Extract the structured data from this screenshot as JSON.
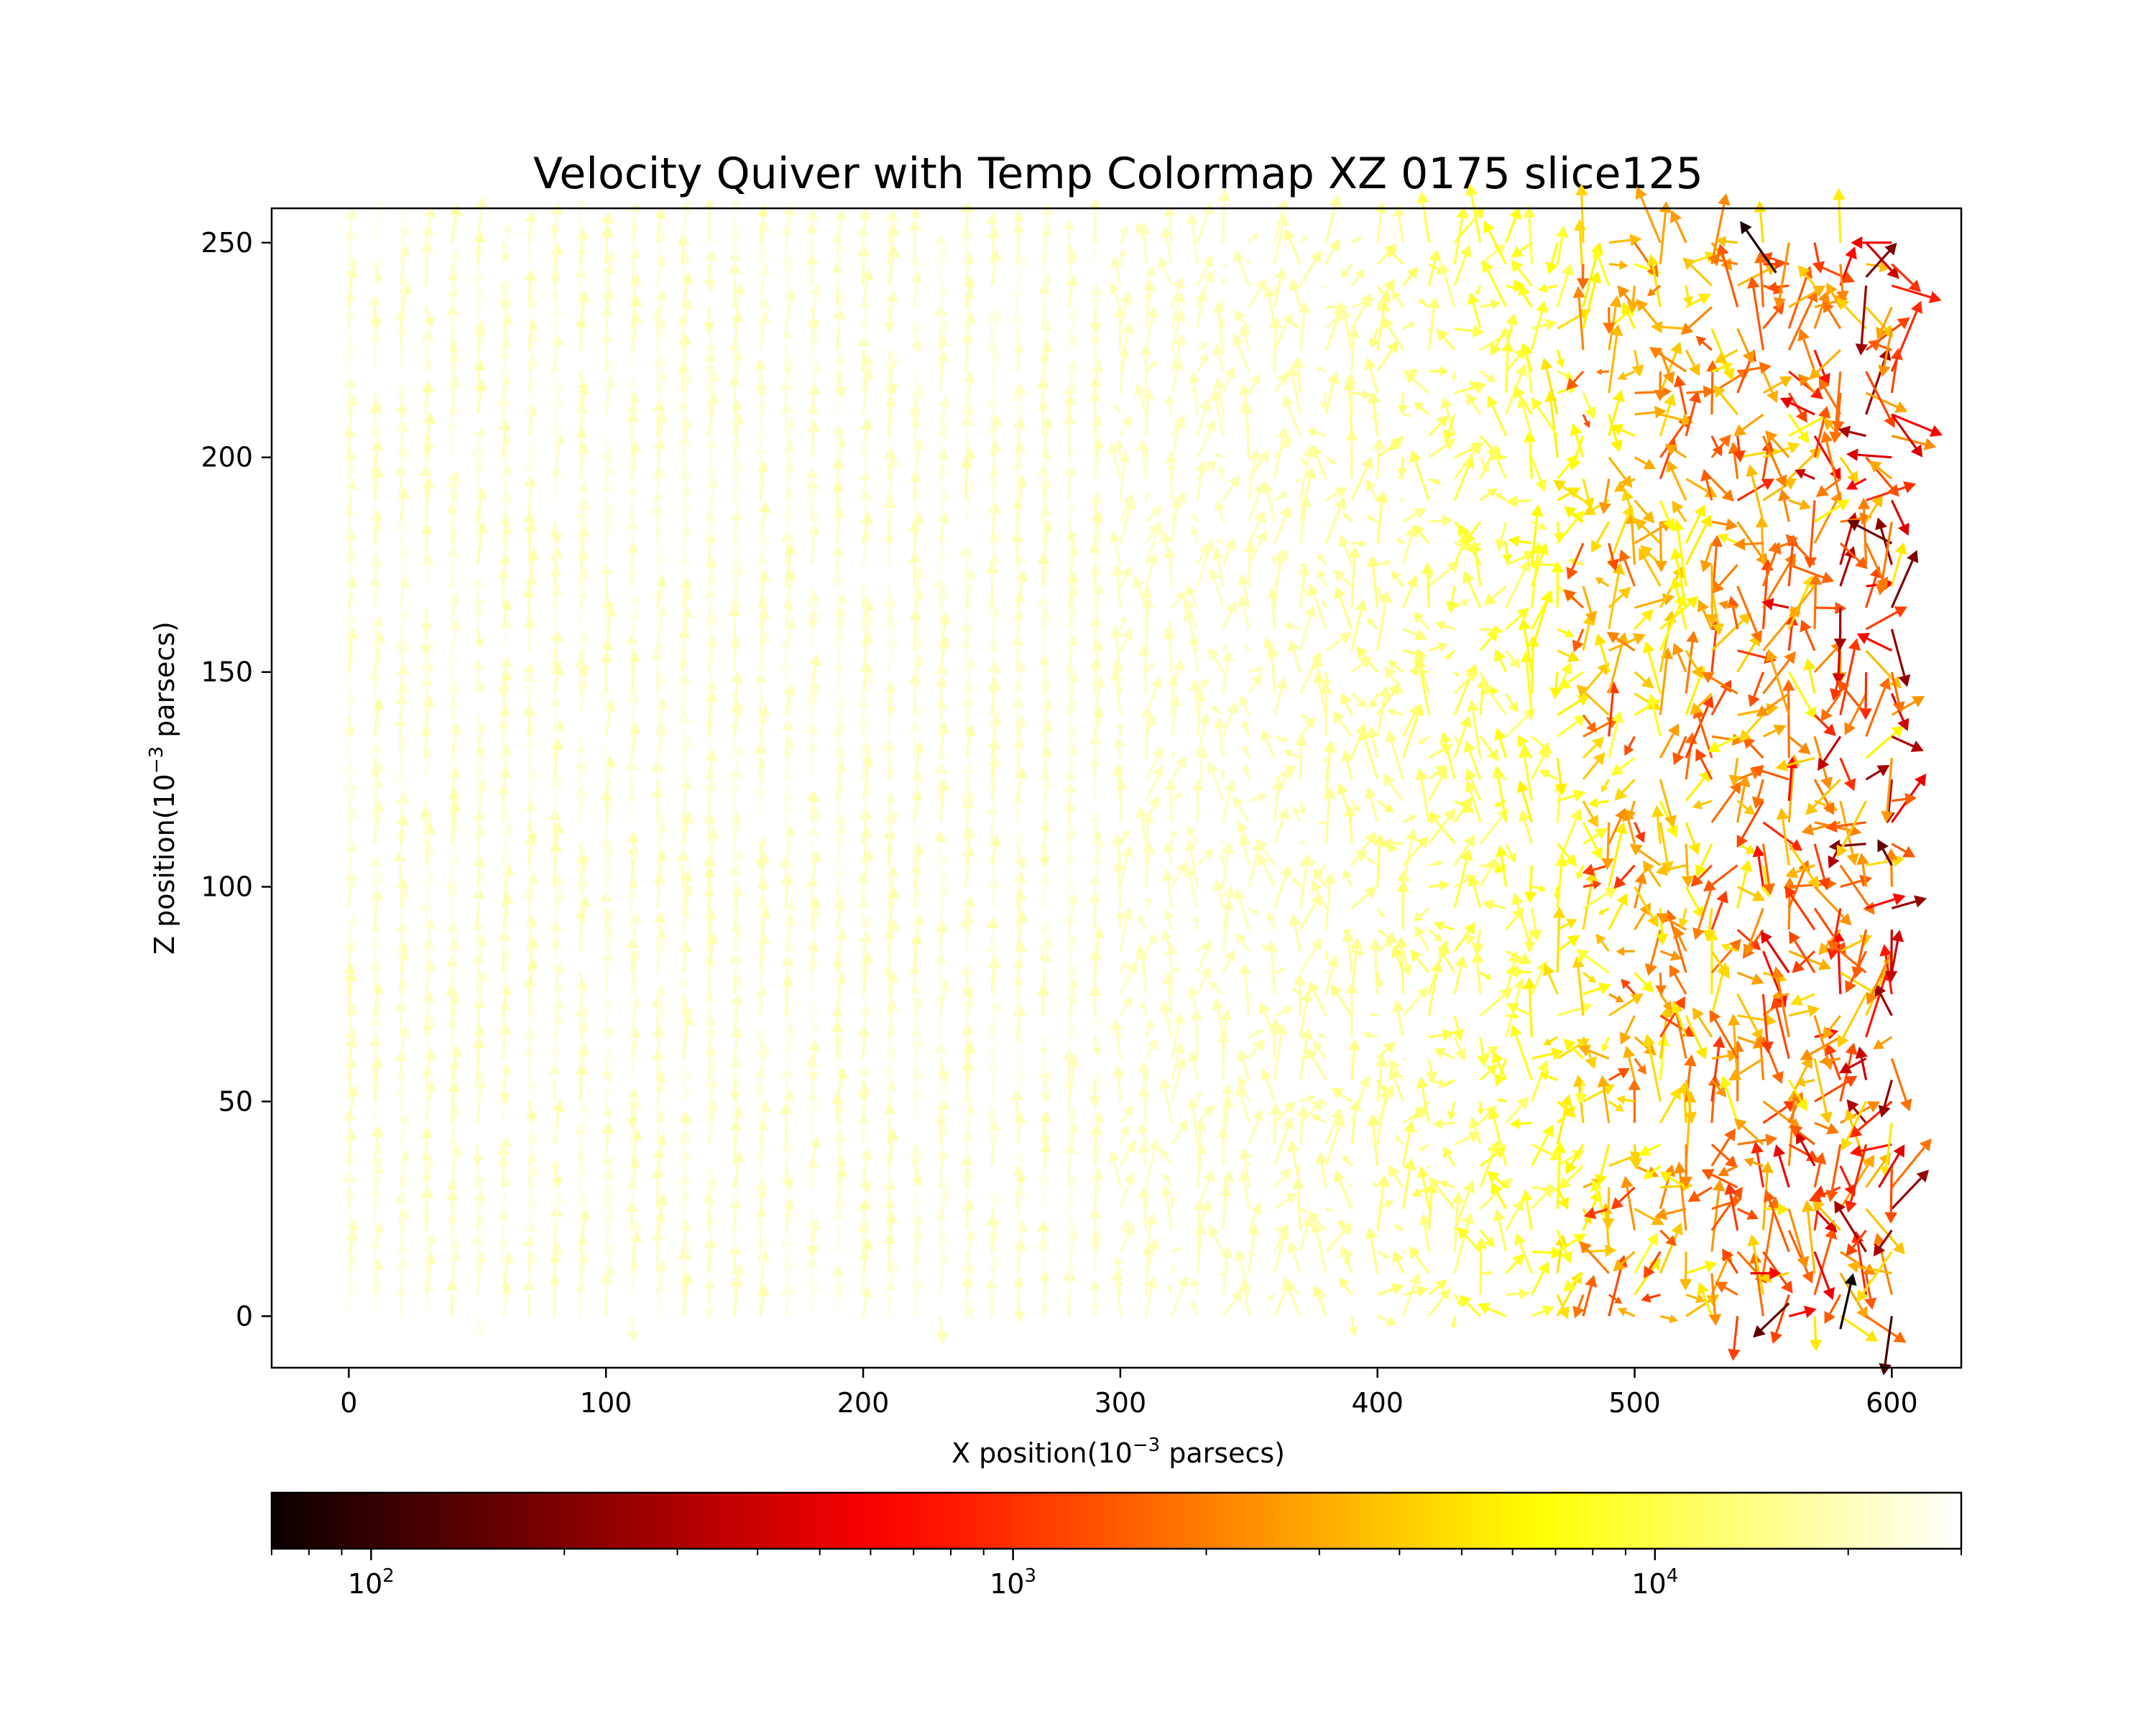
{
  "chart_data": {
    "type": "quiver",
    "title": "Velocity Quiver with Temp Colormap XZ 0175 slice125",
    "xlabel": {
      "prefix": "X position(10",
      "exponent": "−3",
      "suffix": " parsecs)"
    },
    "ylabel": {
      "prefix": "Z position(10",
      "exponent": "−3",
      "suffix": " parsecs)"
    },
    "xlim": [
      -30,
      627
    ],
    "ylim": [
      -12,
      258
    ],
    "xticks": [
      0,
      100,
      200,
      300,
      400,
      500,
      600
    ],
    "xtick_labels": [
      "0",
      "100",
      "200",
      "300",
      "400",
      "500",
      "600"
    ],
    "yticks": [
      0,
      50,
      100,
      150,
      200,
      250
    ],
    "ytick_labels": [
      "0",
      "50",
      "100",
      "150",
      "200",
      "250"
    ],
    "grid": false,
    "colorbar": {
      "orientation": "horizontal",
      "position": "bottom",
      "scale": "log",
      "cmap": "hot",
      "range": [
        70,
        30000
      ],
      "major_ticks": [
        {
          "value": 100,
          "base": "10",
          "exp": "2"
        },
        {
          "value": 1000,
          "base": "10",
          "exp": "3"
        },
        {
          "value": 10000,
          "base": "10",
          "exp": "4"
        }
      ]
    },
    "colormap_stops": [
      {
        "t": 0.0,
        "color": "#0b0000"
      },
      {
        "t": 0.365,
        "color": "#ff0000"
      },
      {
        "t": 0.746,
        "color": "#ffff00"
      },
      {
        "t": 1.0,
        "color": "#ffffff"
      }
    ],
    "grid_spacing": {
      "x": 10,
      "z": 5
    },
    "field_description": "Arrows in the left region (x < 300) point predominantly along +z with low velocity and high temperature (~2e4 K); arrows become more chaotic to the right with cooler temperatures (1e3–5e3 K) near x = 480–600, and the coolest arrows (<200 K) near the top-right and bottom-right corners.",
    "special_arrows": [
      {
        "x": 555,
        "z": 243,
        "u": -14,
        "w": 12,
        "temperature": 85
      },
      {
        "x": 580,
        "z": -3,
        "u": 5,
        "w": 13,
        "temperature": 75
      },
      {
        "x": 560,
        "z": 3,
        "u": -14,
        "w": -8,
        "temperature": 150
      },
      {
        "x": 590,
        "z": 242,
        "u": 12,
        "w": 8,
        "temperature": 200
      },
      {
        "x": 600,
        "z": 210,
        "u": 12,
        "w": -10,
        "temperature": 450
      },
      {
        "x": 595,
        "z": 30,
        "u": 10,
        "w": 10,
        "temperature": 500
      },
      {
        "x": 545,
        "z": 10,
        "u": 12,
        "w": 0,
        "temperature": 600
      }
    ]
  }
}
